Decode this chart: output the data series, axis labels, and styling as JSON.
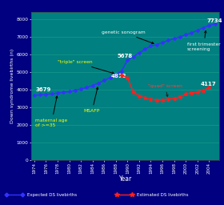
{
  "background_outer": "#000080",
  "background_plot": "#008080",
  "grid_color": "#20A090",
  "xlabel": "Year",
  "ylabel": "Down syndrome livebirths (n)",
  "xlim": [
    1973.5,
    2005.8
  ],
  "ylim": [
    0,
    8400
  ],
  "yticks": [
    0,
    1000,
    2000,
    3000,
    4000,
    5000,
    6000,
    7000,
    8000
  ],
  "xticks": [
    1974,
    1976,
    1978,
    1980,
    1982,
    1984,
    1986,
    1988,
    1990,
    1992,
    1994,
    1996,
    1998,
    2000,
    2002,
    2004
  ],
  "expected_x": [
    1974,
    1975,
    1976,
    1977,
    1978,
    1979,
    1980,
    1981,
    1982,
    1983,
    1984,
    1985,
    1986,
    1987,
    1988,
    1989,
    1990,
    1991,
    1992,
    1993,
    1994,
    1995,
    1996,
    1997,
    1998,
    1999,
    2000,
    2001,
    2002,
    2003,
    2004,
    2005
  ],
  "expected_y": [
    3679,
    3700,
    3730,
    3760,
    3800,
    3840,
    3890,
    3960,
    4030,
    4120,
    4230,
    4370,
    4520,
    4680,
    4870,
    5060,
    5678,
    5880,
    6080,
    6300,
    6480,
    6560,
    6680,
    6800,
    6900,
    7000,
    7120,
    7230,
    7380,
    7520,
    7650,
    7734
  ],
  "estimated_x": [
    1989,
    1990,
    1991,
    1992,
    1993,
    1994,
    1995,
    1996,
    1997,
    1998,
    1999,
    2000,
    2001,
    2002,
    2003,
    2004
  ],
  "estimated_y": [
    4812,
    4680,
    3850,
    3650,
    3520,
    3440,
    3410,
    3420,
    3470,
    3510,
    3570,
    3750,
    3820,
    3870,
    3960,
    4117
  ],
  "expected_color": "#3333FF",
  "estimated_color": "#FF2020",
  "legend_bg": "#006868"
}
